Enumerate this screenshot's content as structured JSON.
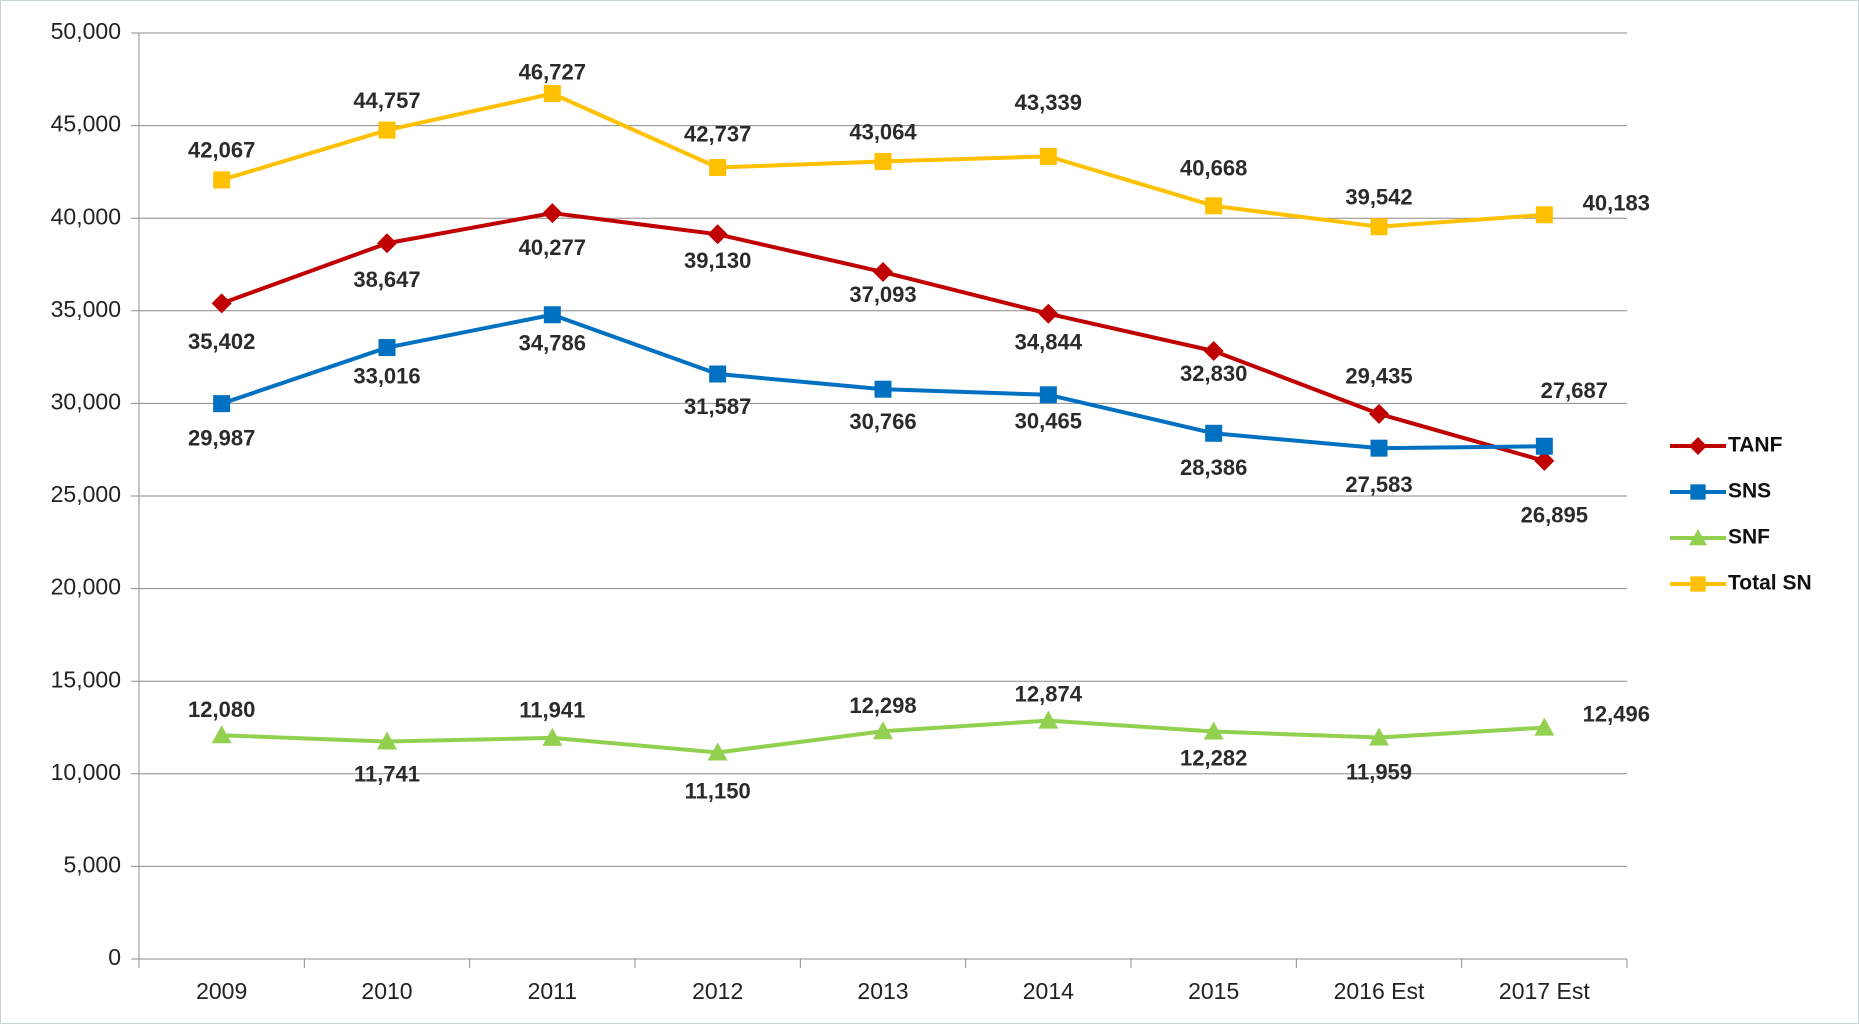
{
  "chart_data": {
    "type": "line",
    "categories": [
      "2009",
      "2010",
      "2011",
      "2012",
      "2013",
      "2014",
      "2015",
      "2016 Est",
      "2017 Est"
    ],
    "series": [
      {
        "name": "TANF",
        "color": "#c00000",
        "marker": "diamond",
        "values": [
          35402,
          38647,
          40277,
          39130,
          37093,
          34844,
          32830,
          29435,
          26895
        ],
        "value_labels": [
          "35,402",
          "38,647",
          "40,277",
          "39,130",
          "37,093",
          "34,844",
          "32,830",
          "29,435",
          "26,895"
        ]
      },
      {
        "name": "SNS",
        "color": "#0070c0",
        "marker": "square",
        "values": [
          29987,
          33016,
          34786,
          31587,
          30766,
          30465,
          28386,
          27583,
          27687
        ],
        "value_labels": [
          "29,987",
          "33,016",
          "34,786",
          "31,587",
          "30,766",
          "30,465",
          "28,386",
          "27,583",
          "27,687"
        ]
      },
      {
        "name": "SNF",
        "color": "#92d050",
        "marker": "triangle",
        "values": [
          12080,
          11741,
          11941,
          11150,
          12298,
          12874,
          12282,
          11959,
          12496
        ],
        "value_labels": [
          "12,080",
          "11,741",
          "11,941",
          "11,150",
          "12,298",
          "12,874",
          "12,282",
          "11,959",
          "12,496"
        ]
      },
      {
        "name": "Total SN",
        "color": "#ffc000",
        "marker": "square",
        "values": [
          42067,
          44757,
          46727,
          42737,
          43064,
          43339,
          40668,
          39542,
          40183
        ],
        "value_labels": [
          "42,067",
          "44,757",
          "46,727",
          "42,737",
          "43,064",
          "43,339",
          "40,668",
          "39,542",
          "40,183"
        ]
      }
    ],
    "ylim": [
      0,
      50000
    ],
    "yticks": [
      {
        "value": 0,
        "label": "0"
      },
      {
        "value": 5000,
        "label": "5,000"
      },
      {
        "value": 10000,
        "label": "10,000"
      },
      {
        "value": 15000,
        "label": "15,000"
      },
      {
        "value": 20000,
        "label": "20,000"
      },
      {
        "value": 25000,
        "label": "25,000"
      },
      {
        "value": 30000,
        "label": "30,000"
      },
      {
        "value": 35000,
        "label": "35,000"
      },
      {
        "value": 40000,
        "label": "40,000"
      },
      {
        "value": 45000,
        "label": "45,000"
      },
      {
        "value": 50000,
        "label": "50,000"
      }
    ],
    "grid": true,
    "legend": "right"
  }
}
